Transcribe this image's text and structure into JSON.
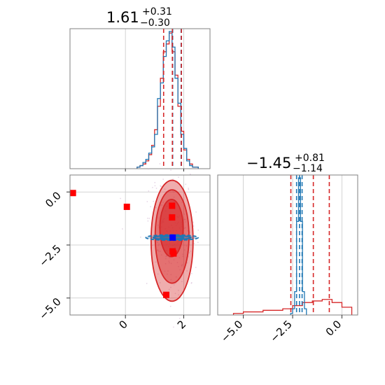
{
  "colors": {
    "red": "#d62728",
    "blue": "#1f77b4",
    "bright_red": "#ff0000",
    "marker_blue": "#0000ff"
  },
  "chart_data": [
    {
      "type": "histogram",
      "panel": "top-left",
      "title": {
        "value": "1.61",
        "plus": "+0.31",
        "minus": "−0.30"
      },
      "xlim": [
        -1.9,
        2.9
      ],
      "grid_x": [
        0,
        2
      ],
      "quantile_lines_red": [
        1.31,
        1.61,
        1.92
      ],
      "quantile_lines_blue": [
        1.62,
        1.91
      ],
      "series": [
        {
          "color": "red",
          "bins": [
            0.4,
            0.5,
            0.6,
            0.7,
            0.8,
            0.9,
            1.0,
            1.1,
            1.2,
            1.3,
            1.4,
            1.5,
            1.6,
            1.7,
            1.8,
            1.9,
            2.0,
            2.1,
            2.2,
            2.3,
            2.4,
            2.5
          ],
          "counts": [
            1,
            2,
            3,
            5,
            9,
            15,
            25,
            40,
            58,
            75,
            80,
            87,
            75,
            60,
            40,
            24,
            12,
            6,
            3,
            1,
            1
          ]
        },
        {
          "color": "blue",
          "bins": [
            0.4,
            0.5,
            0.6,
            0.7,
            0.8,
            0.9,
            1.0,
            1.1,
            1.2,
            1.3,
            1.4,
            1.5,
            1.6,
            1.7,
            1.8,
            1.9,
            2.0,
            2.1,
            2.2,
            2.3,
            2.4,
            2.5
          ],
          "counts": [
            1,
            2,
            4,
            6,
            10,
            14,
            22,
            45,
            55,
            72,
            82,
            88,
            78,
            58,
            42,
            22,
            13,
            5,
            2,
            1,
            1
          ]
        }
      ]
    },
    {
      "type": "histogram",
      "panel": "bottom-right",
      "title": {
        "value": "−1.45",
        "plus": "+0.81",
        "minus": "−1.14"
      },
      "xlim": [
        -6.3,
        0.8
      ],
      "x_ticks": [
        -5.0,
        -2.5,
        0.0
      ],
      "x_tick_labels": [
        "−5.0",
        "−2.5",
        "0.0"
      ],
      "grid_x": [
        -5.0,
        -2.5,
        0.0
      ],
      "quantile_lines_red": [
        -2.59,
        -1.45,
        -0.64
      ],
      "quantile_lines_blue": [
        -2.3,
        -2.15,
        -2.02
      ],
      "series": [
        {
          "color": "red",
          "bins": [
            -5.5,
            -5.0,
            -4.5,
            -4.0,
            -3.5,
            -3.0,
            -2.5,
            -2.0,
            -1.5,
            -1.0,
            -0.5,
            0.0,
            0.5
          ],
          "counts": [
            1,
            2,
            2,
            3,
            3,
            4,
            6,
            8,
            9,
            10,
            8,
            5
          ]
        },
        {
          "color": "blue",
          "bins": [
            -2.6,
            -2.5,
            -2.4,
            -2.3,
            -2.2,
            -2.1,
            -2.0,
            -1.9,
            -1.8
          ],
          "counts": [
            1,
            4,
            15,
            60,
            88,
            60,
            15,
            4
          ]
        }
      ]
    },
    {
      "type": "scatter",
      "panel": "bottom-left",
      "xlim": [
        -1.9,
        2.9
      ],
      "ylim": [
        -5.8,
        0.8
      ],
      "x_ticks": [
        0,
        2
      ],
      "x_tick_labels": [
        "0",
        "2"
      ],
      "y_ticks": [
        0.0,
        -2.5,
        -5.0
      ],
      "y_tick_labels": [
        "0.0",
        "−2.5",
        "−5.0"
      ],
      "grid_x": [
        0,
        2
      ],
      "grid_y": [
        0.0,
        -2.5,
        -5.0
      ],
      "red_contours": [
        {
          "cx": 1.6,
          "cy": -2.3,
          "rx": 0.72,
          "ry": 2.85,
          "opacity": 0.38
        },
        {
          "cx": 1.6,
          "cy": -2.1,
          "rx": 0.58,
          "ry": 2.2,
          "opacity": 0.45
        },
        {
          "cx": 1.58,
          "cy": -1.7,
          "rx": 0.4,
          "ry": 1.35,
          "opacity": 0.6
        }
      ],
      "blue_contours": [
        {
          "cx": 1.6,
          "cy": -2.15,
          "rx": 0.9,
          "ry": 0.13
        },
        {
          "cx": 1.6,
          "cy": -2.15,
          "rx": 0.65,
          "ry": 0.09
        },
        {
          "cx": 1.6,
          "cy": -2.15,
          "rx": 0.4,
          "ry": 0.06
        }
      ],
      "red_points": [
        {
          "x": -1.8,
          "y": -0.05
        },
        {
          "x": 0.05,
          "y": -0.7
        },
        {
          "x": 1.6,
          "y": -0.65
        },
        {
          "x": 1.6,
          "y": -1.2
        },
        {
          "x": 1.62,
          "y": -2.8
        },
        {
          "x": 1.65,
          "y": -2.9
        },
        {
          "x": 1.4,
          "y": -4.85
        }
      ],
      "blue_points": [
        {
          "x": 1.62,
          "y": -2.15
        }
      ]
    }
  ]
}
